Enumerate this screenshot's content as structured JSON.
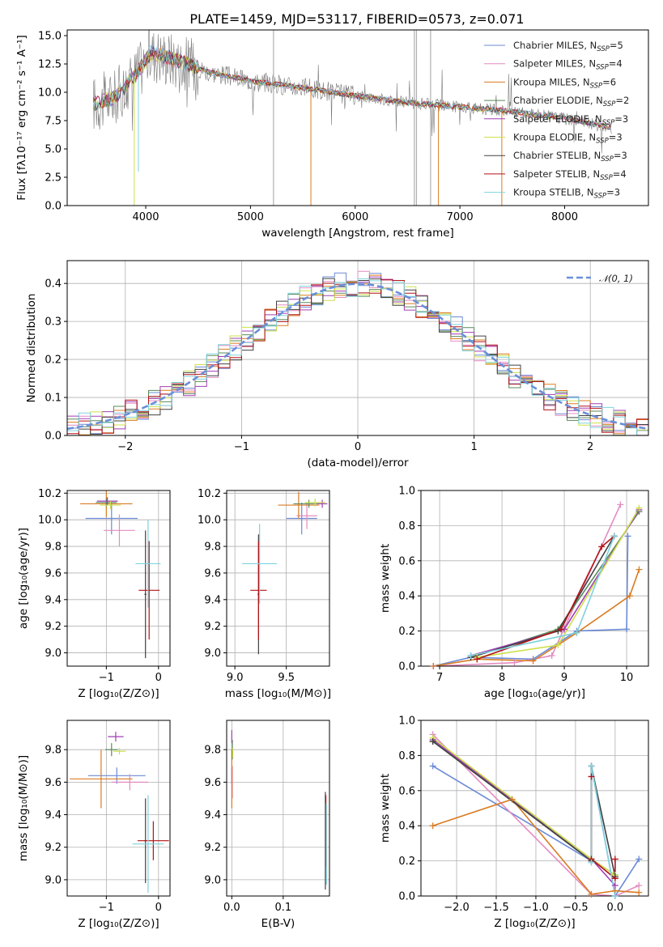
{
  "title": "PLATE=1459, MJD=53117, FIBERID=0573, z=0.071",
  "colors": {
    "grid": "#b0b0b0",
    "gauss": "#6a8fd8",
    "series": [
      "#6b8ad6",
      "#e48bc0",
      "#d97b21",
      "#5a8a5a",
      "#a23fb3",
      "#cddf4b",
      "#404040",
      "#b31217",
      "#7fd2dd"
    ]
  },
  "legend": {
    "models": [
      {
        "base": "Chabrier MILES, N",
        "sub": "SSP",
        "tail": "=5"
      },
      {
        "base": "Salpeter MILES, N",
        "sub": "SSP",
        "tail": "=4"
      },
      {
        "base": "Kroupa MILES, N",
        "sub": "SSP",
        "tail": "=6"
      },
      {
        "base": "Chabrier ELODIE, N",
        "sub": "SSP",
        "tail": "=2"
      },
      {
        "base": "Salpeter ELODIE, N",
        "sub": "SSP",
        "tail": "=3"
      },
      {
        "base": "Kroupa ELODIE, N",
        "sub": "SSP",
        "tail": "=3"
      },
      {
        "base": "Chabrier STELIB, N",
        "sub": "SSP",
        "tail": "=3"
      },
      {
        "base": "Salpeter STELIB, N",
        "sub": "SSP",
        "tail": "=4"
      },
      {
        "base": "Kroupa STELIB, N",
        "sub": "SSP",
        "tail": "=3"
      }
    ],
    "gauss_label": "𝒩(0, 1)"
  },
  "labels": {
    "spec_x": "wavelength [Angstrom, rest frame]",
    "spec_y": "Flux [fλ10⁻¹⁷ erg cm⁻² s⁻¹ A⁻¹]",
    "hist_x": "(data-model)/error",
    "hist_y": "Normed distribution",
    "age_y": "age  [log₁₀(age/yr)]",
    "z_x": "Z [log₁₀(Z/Z⊙)]",
    "mass_x": "mass [log₁₀(M/M⊙)]",
    "mass_y": "mass [log₁₀(M/M⊙)]",
    "mw_y": "mass weight",
    "age_x": "age  [log₁₀(age/yr)]",
    "ebv_x": "E(B-V)"
  },
  "chart_data": [
    {
      "id": "spectrum",
      "type": "line",
      "xlim": [
        3250,
        8800
      ],
      "ylim": [
        0,
        15.5
      ],
      "xticks": [
        4000,
        5000,
        6000,
        7000,
        8000
      ],
      "yticks": [
        0.0,
        2.5,
        5.0,
        7.5,
        10.0,
        12.5,
        15.0
      ],
      "continuum": {
        "x": [
          3500,
          3700,
          3900,
          4050,
          4300,
          4600,
          5000,
          5500,
          6000,
          6500,
          7000,
          7500,
          8000,
          8500
        ],
        "y": [
          9.0,
          9.5,
          11.5,
          13.5,
          12.8,
          11.8,
          11.0,
          10.4,
          9.7,
          9.1,
          8.7,
          8.3,
          7.7,
          6.8
        ]
      }
    },
    {
      "id": "residual_hist",
      "type": "line",
      "xlim": [
        -2.5,
        2.5
      ],
      "ylim": [
        0,
        0.46
      ],
      "xticks": [
        -2,
        -1,
        0,
        1,
        2
      ],
      "yticks": [
        0.0,
        0.1,
        0.2,
        0.3,
        0.4
      ],
      "bin_width": 0.1
    },
    {
      "id": "age_vs_Z",
      "type": "scatter",
      "xlim": [
        -1.75,
        0.22
      ],
      "ylim": [
        8.9,
        10.22
      ],
      "xticks": [
        -1,
        0
      ],
      "yticks": [
        9.0,
        9.2,
        9.4,
        9.6,
        9.8,
        10.0,
        10.2
      ],
      "points": [
        {
          "x": -0.9,
          "y": 10.01,
          "xerr": 0.5,
          "yerr": 0.12
        },
        {
          "x": -0.75,
          "y": 9.92,
          "xerr": 0.3,
          "yerr": 0.12
        },
        {
          "x": -1.0,
          "y": 10.12,
          "xerr": 0.5,
          "yerr": 0.1
        },
        {
          "x": -1.0,
          "y": 10.13,
          "xerr": 0.2,
          "yerr": 0.03
        },
        {
          "x": -0.98,
          "y": 10.14,
          "xerr": 0.2,
          "yerr": 0.03
        },
        {
          "x": -0.92,
          "y": 10.11,
          "xerr": 0.2,
          "yerr": 0.03
        },
        {
          "x": -0.25,
          "y": 9.44,
          "xerr": 0.02,
          "yerr": 0.48
        },
        {
          "x": -0.18,
          "y": 9.47,
          "xerr": 0.2,
          "yerr": 0.37
        },
        {
          "x": -0.2,
          "y": 9.67,
          "xerr": 0.24,
          "yerr": 0.33
        }
      ]
    },
    {
      "id": "age_vs_mass",
      "type": "scatter",
      "xlim": [
        8.92,
        9.92
      ],
      "ylim": [
        8.9,
        10.22
      ],
      "xticks": [
        9.0,
        9.5
      ],
      "yticks": [
        9.0,
        9.2,
        9.4,
        9.6,
        9.8,
        10.0,
        10.2
      ],
      "points": [
        {
          "x": 9.65,
          "y": 10.01,
          "xerr": 0.15,
          "yerr": 0.12
        },
        {
          "x": 9.7,
          "y": 10.03,
          "xerr": 0.1,
          "yerr": 0.1
        },
        {
          "x": 9.62,
          "y": 10.11,
          "xerr": 0.2,
          "yerr": 0.1
        },
        {
          "x": 9.72,
          "y": 10.12,
          "xerr": 0.15,
          "yerr": 0.03
        },
        {
          "x": 9.85,
          "y": 10.12,
          "xerr": 0.05,
          "yerr": 0.03
        },
        {
          "x": 9.78,
          "y": 10.13,
          "xerr": 0.1,
          "yerr": 0.03
        },
        {
          "x": 9.23,
          "y": 9.44,
          "xerr": 0.01,
          "yerr": 0.45
        },
        {
          "x": 9.23,
          "y": 9.47,
          "xerr": 0.08,
          "yerr": 0.37
        },
        {
          "x": 9.24,
          "y": 9.67,
          "xerr": 0.17,
          "yerr": 0.3
        }
      ]
    },
    {
      "id": "massweight_vs_age",
      "type": "line",
      "xlim": [
        6.7,
        10.35
      ],
      "ylim": [
        0,
        1.0
      ],
      "xticks": [
        7,
        8,
        9,
        10
      ],
      "yticks": [
        0.0,
        0.2,
        0.4,
        0.6,
        0.8,
        1.0
      ],
      "series": [
        {
          "x": [
            6.9,
            7.5,
            8.5,
            9.2,
            10.0,
            10.02
          ],
          "y": [
            0.0,
            0.05,
            0.04,
            0.2,
            0.21,
            0.74
          ]
        },
        {
          "x": [
            6.9,
            8.2,
            8.8,
            9.9
          ],
          "y": [
            0.0,
            0.02,
            0.06,
            0.92
          ]
        },
        {
          "x": [
            6.9,
            7.6,
            8.5,
            9.2,
            10.05,
            10.2
          ],
          "y": [
            0.0,
            0.04,
            0.03,
            0.19,
            0.4,
            0.55
          ]
        },
        {
          "x": [
            7.5,
            8.9,
            10.2
          ],
          "y": [
            0.05,
            0.21,
            0.88
          ]
        },
        {
          "x": [
            7.5,
            9.0,
            10.2
          ],
          "y": [
            0.06,
            0.21,
            0.89
          ]
        },
        {
          "x": [
            7.6,
            8.9,
            10.2
          ],
          "y": [
            0.05,
            0.12,
            0.9
          ]
        },
        {
          "x": [
            7.5,
            8.9,
            9.8
          ],
          "y": [
            0.05,
            0.2,
            0.74
          ]
        },
        {
          "x": [
            7.6,
            8.95,
            9.6,
            9.8
          ],
          "y": [
            0.04,
            0.21,
            0.68,
            0.74
          ]
        },
        {
          "x": [
            7.5,
            9.2,
            9.8
          ],
          "y": [
            0.06,
            0.19,
            0.74
          ]
        }
      ]
    },
    {
      "id": "mass_vs_Z",
      "type": "scatter",
      "xlim": [
        -1.75,
        0.22
      ],
      "ylim": [
        8.9,
        9.98
      ],
      "xticks": [
        -1,
        0
      ],
      "yticks": [
        9.0,
        9.2,
        9.4,
        9.6,
        9.8
      ],
      "points": [
        {
          "x": -0.8,
          "y": 9.64,
          "xerr": 0.55,
          "yerr": 0.05
        },
        {
          "x": -0.55,
          "y": 9.6,
          "xerr": 0.35,
          "yerr": 0.05
        },
        {
          "x": -1.1,
          "y": 9.62,
          "xerr": 0.6,
          "yerr": 0.18
        },
        {
          "x": -0.9,
          "y": 9.8,
          "xerr": 0.12,
          "yerr": 0.04
        },
        {
          "x": -0.82,
          "y": 9.88,
          "xerr": 0.15,
          "yerr": 0.03
        },
        {
          "x": -0.75,
          "y": 9.79,
          "xerr": 0.12,
          "yerr": 0.02
        },
        {
          "x": -0.25,
          "y": 9.24,
          "xerr": 0.02,
          "yerr": 0.26
        },
        {
          "x": -0.1,
          "y": 9.24,
          "xerr": 0.3,
          "yerr": 0.12
        },
        {
          "x": -0.2,
          "y": 9.22,
          "xerr": 0.3,
          "yerr": 0.3
        }
      ]
    },
    {
      "id": "mass_vs_ebv",
      "type": "scatter",
      "xlim": [
        -0.01,
        0.19
      ],
      "ylim": [
        8.9,
        9.98
      ],
      "xticks": [
        0.0,
        0.1
      ],
      "yticks": [
        9.0,
        9.2,
        9.4,
        9.6,
        9.8
      ],
      "points": [
        {
          "x": 0.0,
          "y": 9.64,
          "yerr": 0.05
        },
        {
          "x": 0.001,
          "y": 9.6,
          "yerr": 0.1
        },
        {
          "x": 0.0,
          "y": 9.62,
          "yerr": 0.18
        },
        {
          "x": 0.001,
          "y": 9.8,
          "yerr": 0.06
        },
        {
          "x": 0.0,
          "y": 9.88,
          "yerr": 0.04
        },
        {
          "x": 0.002,
          "y": 9.78,
          "yerr": 0.03
        },
        {
          "x": 0.182,
          "y": 9.24,
          "yerr": 0.3
        },
        {
          "x": 0.183,
          "y": 9.3,
          "yerr": 0.22
        },
        {
          "x": 0.184,
          "y": 9.22,
          "yerr": 0.25
        }
      ]
    },
    {
      "id": "massweight_vs_Z",
      "type": "line",
      "xlim": [
        -2.45,
        0.42
      ],
      "ylim": [
        0,
        1.0
      ],
      "xticks": [
        -2.0,
        -1.5,
        -1.0,
        -0.5,
        0.0
      ],
      "yticks": [
        0.0,
        0.2,
        0.4,
        0.6,
        0.8,
        1.0
      ],
      "series": [
        {
          "x": [
            -2.3,
            -0.3,
            -0.3,
            0.0,
            0.0,
            0.3
          ],
          "y": [
            0.74,
            0.2,
            0.74,
            0.0,
            0.0,
            0.21
          ]
        },
        {
          "x": [
            -2.3,
            -0.3,
            0.0,
            0.3
          ],
          "y": [
            0.92,
            0.01,
            0.0,
            0.06
          ]
        },
        {
          "x": [
            -2.3,
            -1.3,
            -0.3,
            0.0,
            0.3
          ],
          "y": [
            0.4,
            0.55,
            0.01,
            0.03,
            0.02
          ]
        },
        {
          "x": [
            -2.3,
            -0.3,
            0.0
          ],
          "y": [
            0.88,
            0.21,
            0.12
          ]
        },
        {
          "x": [
            -2.3,
            -0.3,
            0.0
          ],
          "y": [
            0.89,
            0.21,
            0.06
          ]
        },
        {
          "x": [
            -2.3,
            -0.3,
            0.0
          ],
          "y": [
            0.9,
            0.21,
            0.12
          ]
        },
        {
          "x": [
            -2.3,
            -0.3,
            -0.3,
            0.0
          ],
          "y": [
            0.88,
            0.2,
            0.74,
            0.11
          ]
        },
        {
          "x": [
            -0.3,
            -0.3,
            0.0,
            0.0
          ],
          "y": [
            0.68,
            0.21,
            0.1,
            0.21
          ]
        },
        {
          "x": [
            -0.3,
            -0.3,
            0.0
          ],
          "y": [
            0.19,
            0.74,
            0.0
          ]
        }
      ]
    }
  ]
}
